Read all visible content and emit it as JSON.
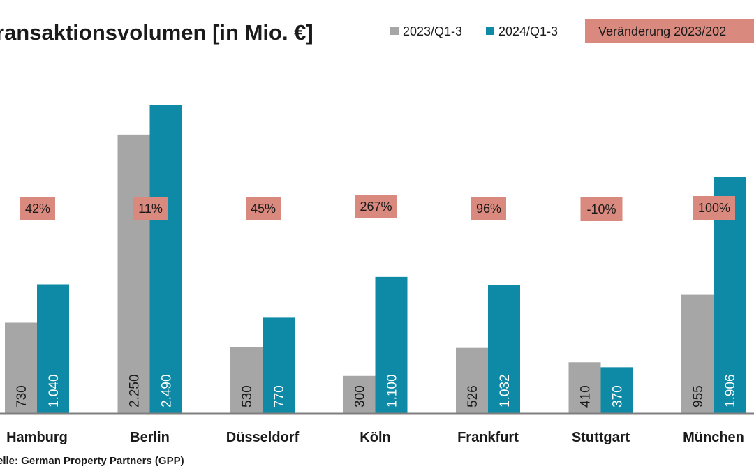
{
  "colors": {
    "series_2023": "#a6a6a6",
    "series_2024": "#0e89a6",
    "change_box": "#d9897d",
    "axis": "#7f7f7f"
  },
  "source": "elle: German Property Partners (GPP)",
  "chart_data": {
    "type": "bar",
    "title": "ransaktionsvolumen [in Mio. €]",
    "categories": [
      "Hamburg",
      "Berlin",
      "Düsseldorf",
      "Köln",
      "Frankfurt",
      "Stuttgart",
      "München"
    ],
    "series": [
      {
        "name": "2023/Q1-3",
        "values": [
          730,
          2250,
          530,
          300,
          526,
          410,
          955
        ],
        "labels": [
          "730",
          "2.250",
          "530",
          "300",
          "526",
          "410",
          "955"
        ]
      },
      {
        "name": "2024/Q1-3",
        "values": [
          1040,
          2490,
          770,
          1100,
          1032,
          370,
          1906
        ],
        "labels": [
          "1.040",
          "2.490",
          "770",
          "1.100",
          "1.032",
          "370",
          "1.906"
        ]
      }
    ],
    "change_legend": "Veränderung 2023/202",
    "changes": [
      "42%",
      "11%",
      "45%",
      "267%",
      "96%",
      "-10%",
      "100%"
    ],
    "ylim": [
      0,
      2750
    ],
    "grid": false,
    "legend_position": "top-right"
  }
}
